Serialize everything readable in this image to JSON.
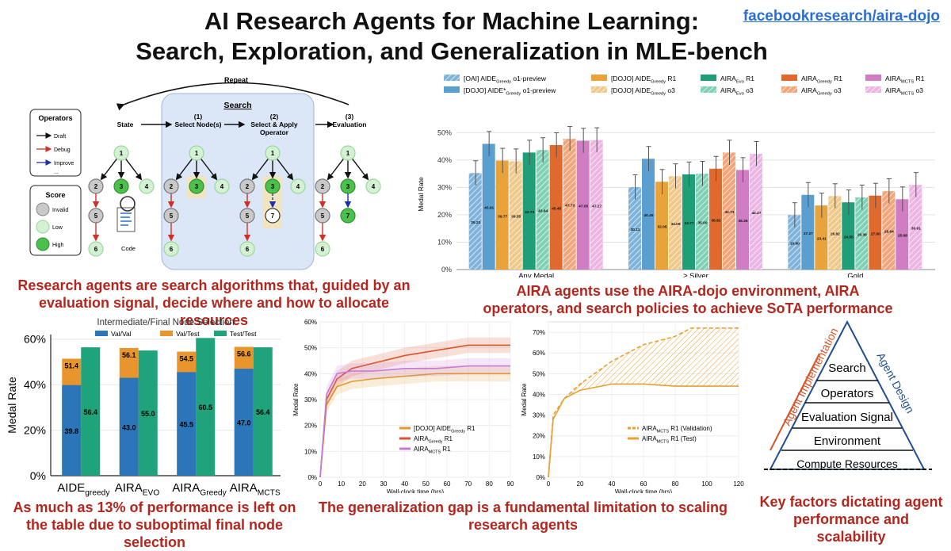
{
  "header": {
    "title_line1": "AI Research Agents for Machine Learning:",
    "title_line2": "Search, Exploration, and Generalization in MLE-bench",
    "repo_link": "facebookresearch/aira-dojo"
  },
  "diagram": {
    "repeat_label": "Repeat",
    "search_label": "Search",
    "state_label": "State",
    "step1_num": "(1)",
    "step1_label": "Select Node(s)",
    "step2_num": "(2)",
    "step2_label_a": "Select & Apply",
    "step2_label_b": "Operator",
    "step3_num": "(3)",
    "step3_label": "Evaluation",
    "operators_title": "Operators",
    "operators": [
      "Draft",
      "Debug",
      "Improve",
      "..."
    ],
    "score_title": "Score",
    "scores": [
      "Invalid",
      "Low",
      "High"
    ],
    "code_label": "Code",
    "colors": {
      "invalid": "#c9c9c9",
      "low": "#d4f1d4",
      "high": "#4cc04c",
      "debug": "#d0302a",
      "improve": "#1a2fa8"
    }
  },
  "captions": {
    "c1": "Research agents are search algorithms that, guided by an evaluation signal, decide where and how to allocate resources",
    "c2": "AIRA agents use the AIRA-dojo environment, AIRA operators, and search policies to achieve SoTA performance",
    "c3": "As much as 13% of performance is left on the table due to suboptimal final node selection",
    "c4": "The generalization gap is a fundamental limitation to scaling research agents",
    "c5": "Key factors dictating agent performance and scalability"
  },
  "chart_data": [
    {
      "type": "bar",
      "id": "medal-rate-main",
      "ylabel": "Medal Rate",
      "ylim": [
        0,
        55
      ],
      "yticks": [
        "0%",
        "10%",
        "20%",
        "30%",
        "40%",
        "50%"
      ],
      "categories": [
        "Any Medal",
        "≥ Silver",
        "Gold"
      ],
      "legend_position": "top",
      "series": [
        {
          "name": "[OAI] AIDE Greedy o1-preview",
          "color": "#7fb3dc",
          "hatch": true,
          "values": [
            35.23,
            30.11,
            19.9
          ]
        },
        {
          "name": "[DOJO] AIDE* Greedy o1-preview",
          "color": "#5a9fd0",
          "hatch": false,
          "values": [
            45.91,
            40.45,
            27.27
          ]
        },
        {
          "name": "[DOJO] AIDE Greedy R1",
          "color": "#e8a33a",
          "hatch": false,
          "values": [
            39.77,
            32.05,
            23.41
          ]
        },
        {
          "name": "[DOJO] AIDE Greedy o3",
          "color": "#f0c98a",
          "hatch": true,
          "values": [
            39.55,
            34.09,
            26.82
          ]
        },
        {
          "name": "AIRA Evo R1",
          "color": "#1f9e77",
          "hatch": false,
          "values": [
            42.73,
            34.77,
            24.55
          ]
        },
        {
          "name": "AIRA Evo o3",
          "color": "#7fd1b5",
          "hatch": true,
          "values": [
            43.64,
            35.0,
            26.36
          ]
        },
        {
          "name": "AIRA Greedy R1",
          "color": "#e0692e",
          "hatch": false,
          "values": [
            45.45,
            36.82,
            27.0
          ]
        },
        {
          "name": "AIRA Greedy o3",
          "color": "#f2a57a",
          "hatch": true,
          "values": [
            47.73,
            42.73,
            28.64
          ]
        },
        {
          "name": "AIRA MCTS R1",
          "color": "#d07dc4",
          "hatch": false,
          "values": [
            47.05,
            36.36,
            25.68
          ]
        },
        {
          "name": "AIRA MCTS o3",
          "color": "#ecb5e3",
          "hatch": true,
          "values": [
            47.27,
            42.27,
            30.91
          ]
        }
      ],
      "legend": [
        [
          "[OAI] AIDE",
          "Greedy",
          " o1-preview"
        ],
        [
          "[DOJO] AIDE*",
          "Greedy",
          " o1-preview"
        ],
        [
          "[DOJO] AIDE",
          "Greedy",
          " R1"
        ],
        [
          "[DOJO] AIDE",
          "Greedy",
          " o3"
        ],
        [
          "AIRA",
          "Evo",
          " R1"
        ],
        [
          "AIRA",
          "Evo",
          " o3"
        ],
        [
          "AIRA",
          "Greedy",
          " R1"
        ],
        [
          "AIRA",
          "Greedy",
          " o3"
        ],
        [
          "AIRA",
          "MCTS",
          " R1"
        ],
        [
          "AIRA",
          "MCTS",
          " o3"
        ]
      ]
    },
    {
      "type": "bar",
      "id": "node-selection",
      "title": "Intermediate/Final Node Selection",
      "ylabel": "Medal Rate",
      "ylim": [
        0,
        62
      ],
      "yticks": [
        "0%",
        "20%",
        "40%",
        "60%"
      ],
      "categories": [
        [
          "AIDE",
          "greedy"
        ],
        [
          "AIRA",
          "EVO"
        ],
        [
          "AIRA",
          "Greedy"
        ],
        [
          "AIRA",
          "MCTS"
        ]
      ],
      "legend_position": "top",
      "series": [
        {
          "name": "Val/Val",
          "color": "#2a76b8",
          "values": [
            39.8,
            43.0,
            45.5,
            47.0
          ]
        },
        {
          "name": "Val/Test",
          "color": "#e8952e",
          "values": [
            51.4,
            56.1,
            54.5,
            56.6
          ]
        },
        {
          "name": "Test/Test",
          "color": "#1ea37a",
          "values": [
            56.4,
            55.0,
            60.5,
            56.4
          ]
        }
      ]
    },
    {
      "type": "line",
      "id": "wallclock-1",
      "xlabel": "Wall-clock time (hrs)",
      "ylabel": "Medal Rate",
      "xlim": [
        0,
        90
      ],
      "ylim": [
        0,
        60
      ],
      "xticks": [
        "0",
        "10",
        "20",
        "30",
        "40",
        "50",
        "60",
        "70",
        "80",
        "90"
      ],
      "yticks": [
        "0%",
        "10%",
        "20%",
        "30%",
        "40%",
        "50%",
        "60%"
      ],
      "legend_position": "lower-right",
      "series": [
        {
          "name": "[DOJO] AIDE Greedy R1",
          "label": [
            "[DOJO] AIDE",
            "Greedy",
            " R1"
          ],
          "color": "#e09a2a",
          "x": [
            0,
            3,
            8,
            15,
            25,
            40,
            55,
            70,
            90
          ],
          "y": [
            0,
            28,
            35,
            37,
            38,
            39,
            40,
            40,
            40
          ]
        },
        {
          "name": "AIRA Greedy R1",
          "label": [
            "AIRA",
            "Greedy",
            " R1"
          ],
          "color": "#d9542a",
          "x": [
            0,
            3,
            8,
            15,
            25,
            40,
            55,
            70,
            90
          ],
          "y": [
            0,
            30,
            38,
            42,
            44,
            47,
            49,
            51,
            51
          ]
        },
        {
          "name": "AIRA MCTS R1",
          "label": [
            "AIRA",
            "MCTS",
            " R1"
          ],
          "color": "#c77bd8",
          "x": [
            0,
            3,
            8,
            15,
            25,
            40,
            55,
            70,
            90
          ],
          "y": [
            0,
            32,
            40,
            41,
            41,
            42,
            42,
            43,
            43
          ]
        }
      ]
    },
    {
      "type": "line",
      "id": "wallclock-2",
      "xlabel": "Wall-clock time (hrs)",
      "ylabel": "Medal Rate",
      "xlim": [
        0,
        120
      ],
      "ylim": [
        0,
        75
      ],
      "xticks": [
        "0",
        "20",
        "40",
        "60",
        "80",
        "100",
        "120"
      ],
      "yticks": [
        "0%",
        "10%",
        "20%",
        "30%",
        "40%",
        "50%",
        "60%",
        "70%"
      ],
      "legend_position": "lower-right",
      "series": [
        {
          "name": "AIRA MCTS R1 (Validation)",
          "label": [
            "AIRA",
            "MCTS",
            " R1 (Validation)"
          ],
          "color": "#e8a030",
          "style": "dashed",
          "x": [
            0,
            3,
            10,
            20,
            40,
            60,
            80,
            90,
            120
          ],
          "y": [
            0,
            30,
            38,
            45,
            56,
            64,
            68,
            72,
            72
          ]
        },
        {
          "name": "AIRA MCTS R1 (Test)",
          "label": [
            "AIRA",
            "MCTS",
            " R1 (Test)"
          ],
          "color": "#e8a030",
          "style": "solid",
          "x": [
            0,
            3,
            10,
            20,
            40,
            60,
            80,
            100,
            120
          ],
          "y": [
            0,
            28,
            38,
            42,
            45,
            45,
            44,
            44,
            44
          ]
        }
      ]
    }
  ],
  "pyramid": {
    "levels": [
      "Search",
      "Operators",
      "Evaluation Signal",
      "Environment",
      "Compute Resources"
    ],
    "left_label": "Agent Implementation",
    "right_label": "Agent Design"
  }
}
